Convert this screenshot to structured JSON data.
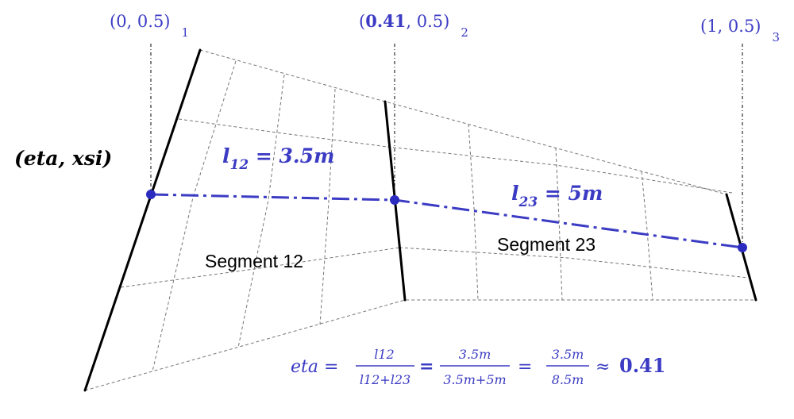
{
  "colors": {
    "accent": "#3b3bc4",
    "line": "#000000",
    "grid": "#777777"
  },
  "points": [
    {
      "coord_open": "(0, 0.5)",
      "subscript": "1"
    },
    {
      "coord_bold": "0.41",
      "coord_rest": ", 0.5)",
      "subscript": "2"
    },
    {
      "coord_open": "(1, 0.5)",
      "subscript": "3"
    }
  ],
  "axis_label": "(eta, xsi)",
  "lengths": {
    "l12": {
      "name": "l",
      "sub": "12",
      "value": " = 3.5m"
    },
    "l23": {
      "name": "l",
      "sub": "23",
      "value": " = 5m"
    }
  },
  "segments": {
    "segment12": "Segment 12",
    "segment23": "Segment 23"
  },
  "formula": {
    "lhs": "eta =",
    "frac1_num": "l12",
    "frac1_den": "l12+l23",
    "eq1": "=",
    "frac2_num": "3.5m",
    "frac2_den": "3.5m+5m",
    "eq2": "=",
    "frac3_num": "3.5m",
    "frac3_den": "8.5m",
    "approx": "≈",
    "result": "0.41"
  }
}
